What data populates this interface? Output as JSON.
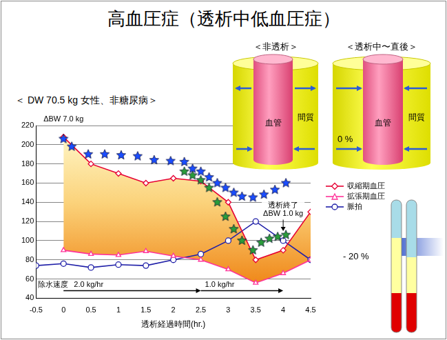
{
  "title": "高血圧症（透析中低血圧症）",
  "diagram": {
    "panels": [
      {
        "label": "＜非透析＞",
        "outer": "間質",
        "inner": "血管"
      },
      {
        "label": "＜透析中〜直後＞",
        "outer": "間質",
        "inner": "血管"
      }
    ]
  },
  "side_labels": [
    "0 %",
    "- 20 %"
  ],
  "chart_data": {
    "type": "line",
    "subtitle": "＜ DW 70.5 kg 女性、非糖尿病＞",
    "x_label": "透析経過時間(hr.)",
    "xlim": [
      -0.5,
      4.5
    ],
    "xticks": [
      -0.5,
      0,
      0.5,
      1,
      1.5,
      2,
      2.5,
      3,
      3.5,
      4,
      4.5
    ],
    "ylim": [
      40,
      220
    ],
    "yticks": [
      40,
      60,
      80,
      100,
      120,
      140,
      160,
      180,
      200,
      220
    ],
    "grid": true,
    "legend": "right",
    "series": [
      {
        "name": "収縮期血圧",
        "color": "#e60033",
        "marker": "diamond",
        "line_style": "solid",
        "x": [
          0,
          0.5,
          1,
          1.5,
          2,
          2.5,
          3,
          3.5,
          4,
          4.5
        ],
        "values": [
          208,
          180,
          170,
          160,
          165,
          162,
          140,
          80,
          90,
          130
        ]
      },
      {
        "name": "拡張期血圧",
        "color": "#ff3399",
        "marker": "triangle",
        "line_style": "solid",
        "x": [
          0,
          0.5,
          1,
          1.5,
          2,
          2.5,
          3,
          3.5,
          4,
          4.5
        ],
        "values": [
          90,
          86,
          85,
          89,
          84,
          80,
          70,
          56,
          66,
          80
        ]
      },
      {
        "name": "脈拍",
        "color": "#1f1fa8",
        "marker": "circle",
        "line_style": "solid",
        "x": [
          -0.5,
          0,
          0.5,
          1,
          1.5,
          2,
          2.5,
          3,
          3.5,
          4,
          4.5
        ],
        "values": [
          74,
          76,
          72,
          75,
          74,
          80,
          86,
          100,
          120,
          100,
          80
        ]
      },
      {
        "color": "#1a4dff",
        "marker": "star",
        "line_style": "none",
        "x": [
          0,
          0.15,
          0.45,
          0.75,
          1.05,
          1.35,
          1.65,
          1.95,
          2.2,
          2.35,
          2.5,
          2.65,
          2.8,
          2.95,
          3.1,
          3.25,
          3.45,
          3.65,
          3.85,
          4.05
        ],
        "values": [
          206,
          198,
          190,
          190,
          189,
          188,
          184,
          183,
          182,
          175,
          172,
          166,
          160,
          155,
          150,
          146,
          145,
          148,
          153,
          160
        ]
      },
      {
        "color": "#2a9d3a",
        "marker": "star",
        "line_style": "none",
        "x": [
          2.2,
          2.35,
          2.5,
          2.65,
          2.8,
          2.95,
          3.1,
          3.25,
          3.45,
          3.6,
          3.75,
          3.9,
          4.05
        ],
        "values": [
          172,
          168,
          163,
          155,
          140,
          125,
          112,
          100,
          90,
          98,
          102,
          104,
          106
        ]
      }
    ],
    "annotations": [
      {
        "lines": [
          "ΔBW 7.0 kg"
        ],
        "x": 0
      },
      {
        "lines": [
          "透析終了",
          "ΔBW 1.0 kg"
        ],
        "x": 4
      }
    ],
    "removal_rate": {
      "label": "除水速度",
      "segments": [
        {
          "label": "2.0 kg/hr",
          "from": 0,
          "to": 2.5
        },
        {
          "label": "1.0 kg/hr",
          "from": 2.5,
          "to": 4
        }
      ]
    }
  }
}
